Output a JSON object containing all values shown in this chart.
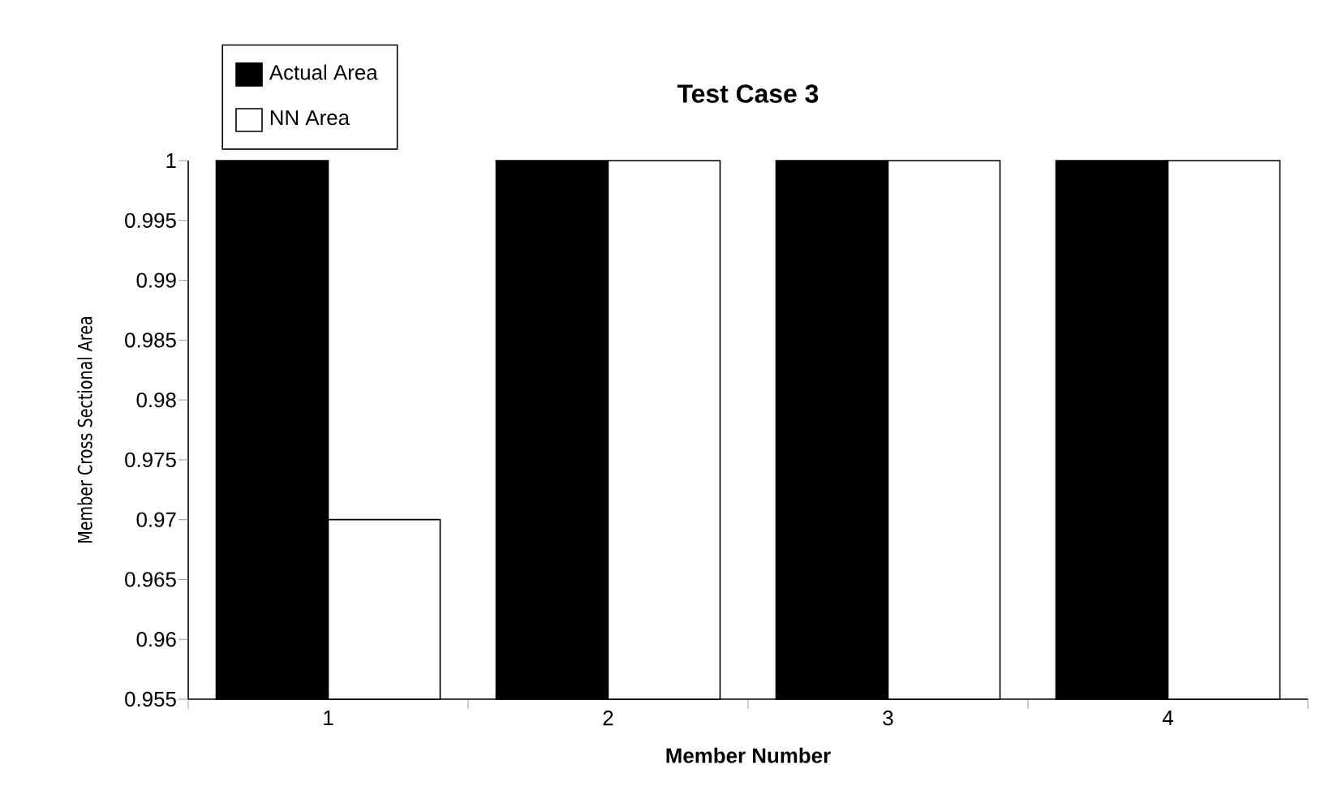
{
  "chart_data": {
    "type": "bar",
    "title": "Test Case 3",
    "xlabel": "Member Number",
    "ylabel": "Member Cross Sectional Area",
    "categories": [
      "1",
      "2",
      "3",
      "4"
    ],
    "series": [
      {
        "name": "Actual Area",
        "color": "#000000",
        "values": [
          1,
          1,
          1,
          1
        ]
      },
      {
        "name": "NN Area",
        "color": "#ffffff",
        "values": [
          0.97,
          1,
          1,
          1
        ]
      }
    ],
    "ylim": [
      0.955,
      1
    ],
    "yticks": [
      0.955,
      0.96,
      0.965,
      0.97,
      0.975,
      0.98,
      0.985,
      0.99,
      0.995,
      1
    ],
    "grid": false,
    "legend": "top left"
  }
}
